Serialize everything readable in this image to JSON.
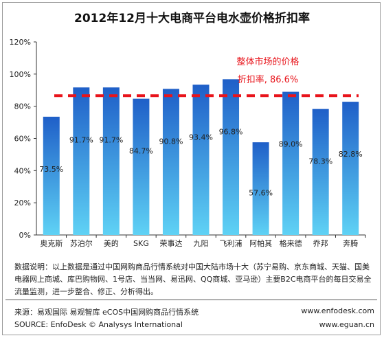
{
  "chart_data": {
    "type": "bar",
    "title": "2012年12月十大电商平台电水壶价格折扣率",
    "categories": [
      "奥克斯",
      "苏泊尔",
      "美的",
      "SKG",
      "荣事达",
      "九阳",
      "飞利浦",
      "阿帕其",
      "格来德",
      "乔邦",
      "奔腾"
    ],
    "values": [
      73.5,
      91.7,
      91.7,
      84.7,
      90.8,
      93.4,
      96.8,
      57.6,
      89.0,
      78.3,
      82.8
    ],
    "value_labels": [
      "73.5%",
      "91.7%",
      "91.7%",
      "84.7%",
      "90.8%",
      "93.4%",
      "96.8%",
      "57.6%",
      "89.0%",
      "78.3%",
      "82.8%"
    ],
    "ylim": [
      0,
      120
    ],
    "yticks": [
      0,
      20,
      40,
      60,
      80,
      100,
      120
    ],
    "ytick_labels": [
      "0%",
      "20%",
      "40%",
      "60%",
      "80%",
      "100%",
      "120%"
    ],
    "reference_line": {
      "value": 86.6,
      "label_line1": "整体市场的价格",
      "label_line2": "折扣率, 86.6%",
      "color": "#e8141b",
      "style": "dashed"
    },
    "bar_color_top": "#1f5fc8",
    "bar_color_bottom": "#5fd2f5",
    "xlabel": "",
    "ylabel": "",
    "grid": false
  },
  "footer": {
    "description": "数据说明：以上数据是通过中国网购商品行情系统对中国大陆市场十大（苏宁易购、京东商城、天猫、国美电器网上商城、库巴购物网、1号店、当当网、易迅网、QQ商城、亚马逊）主要B2C电商平台的每日交易全流量监测，进一步整合、修正、分析得出。",
    "source_cn": "来源：易观国际 易观智库 eCOS中国网购商品行情系统",
    "source_en": "SOURCE: EnfoDesk © Analysys International",
    "website1": "www.enfodesk.com",
    "website2": "www.eguan.cn"
  }
}
